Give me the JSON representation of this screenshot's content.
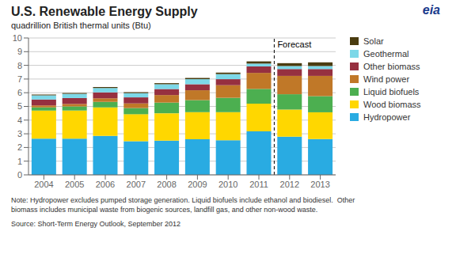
{
  "chart_data": {
    "type": "bar",
    "stacked": true,
    "title": "U.S. Renewable Energy Supply",
    "subtitle": "quadrillion British thermal units (Btu)",
    "logo": "eia",
    "categories": [
      "2004",
      "2005",
      "2006",
      "2007",
      "2008",
      "2009",
      "2010",
      "2011",
      "2012",
      "2013"
    ],
    "series": [
      {
        "name": "Hydropower",
        "color": "#29ABE2",
        "values": [
          2.65,
          2.65,
          2.85,
          2.45,
          2.5,
          2.6,
          2.53,
          3.18,
          2.79,
          2.62
        ]
      },
      {
        "name": "Wood biomass",
        "color": "#FFD700",
        "values": [
          2.05,
          2.05,
          2.08,
          1.98,
          2.0,
          1.98,
          2.05,
          2.02,
          1.98,
          1.95
        ]
      },
      {
        "name": "Liquid biofuels",
        "color": "#4CAF50",
        "values": [
          0.23,
          0.3,
          0.4,
          0.45,
          0.78,
          0.88,
          1.05,
          1.08,
          1.12,
          1.18
        ]
      },
      {
        "name": "Wind power",
        "color": "#C07828",
        "values": [
          0.14,
          0.18,
          0.26,
          0.34,
          0.55,
          0.72,
          0.92,
          1.17,
          1.34,
          1.48
        ]
      },
      {
        "name": "Other biomass",
        "color": "#963040",
        "values": [
          0.43,
          0.43,
          0.44,
          0.44,
          0.44,
          0.44,
          0.44,
          0.47,
          0.5,
          0.5
        ]
      },
      {
        "name": "Geothermal",
        "color": "#7DD8E8",
        "values": [
          0.31,
          0.31,
          0.31,
          0.31,
          0.35,
          0.37,
          0.37,
          0.21,
          0.22,
          0.22
        ]
      },
      {
        "name": "Solar",
        "color": "#4A3C10",
        "values": [
          0.06,
          0.06,
          0.07,
          0.07,
          0.08,
          0.09,
          0.11,
          0.16,
          0.21,
          0.27
        ]
      }
    ],
    "ylim": [
      0,
      10
    ],
    "yticks": [
      0,
      1,
      2,
      3,
      4,
      5,
      6,
      7,
      8,
      9,
      10
    ],
    "grid": true,
    "legend": "right",
    "annotations": [
      {
        "text": "Forecast",
        "x": "2012"
      }
    ],
    "notes": [
      "Note: Hydropower excludes pumped storage generation. Liquid biofuels include ethanol and biodiesel.  Other",
      "biomass includes municipal waste from biogenic sources, landfill gas, and other non-wood waste."
    ],
    "source": "Source: Short-Term Energy Outlook, September 2012"
  }
}
